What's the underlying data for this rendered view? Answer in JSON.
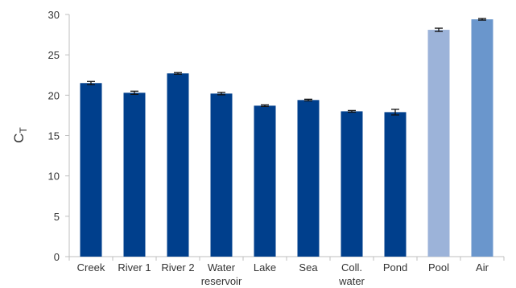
{
  "chart_data": {
    "type": "bar",
    "title": "",
    "xlabel": "",
    "ylabel": {
      "main": "C",
      "sub": "T"
    },
    "ylim": [
      0,
      30
    ],
    "yticks": [
      0,
      5,
      10,
      15,
      20,
      25,
      30
    ],
    "grid": false,
    "categories": [
      [
        "Creek"
      ],
      [
        "River 1"
      ],
      [
        "River 2"
      ],
      [
        "Water",
        "reservoir"
      ],
      [
        "Lake"
      ],
      [
        "Sea"
      ],
      [
        "Coll.",
        "water"
      ],
      [
        "Pond"
      ],
      [
        "Pool"
      ],
      [
        "Air"
      ]
    ],
    "values": [
      21.5,
      20.3,
      22.7,
      20.2,
      18.7,
      19.4,
      18.0,
      17.9,
      28.1,
      29.4
    ],
    "errors": [
      0.2,
      0.2,
      0.1,
      0.15,
      0.1,
      0.1,
      0.1,
      0.35,
      0.2,
      0.1
    ],
    "colors": [
      "#003f8c",
      "#003f8c",
      "#003f8c",
      "#003f8c",
      "#003f8c",
      "#003f8c",
      "#003f8c",
      "#003f8c",
      "#9cb3d9",
      "#6a96cc"
    ]
  }
}
